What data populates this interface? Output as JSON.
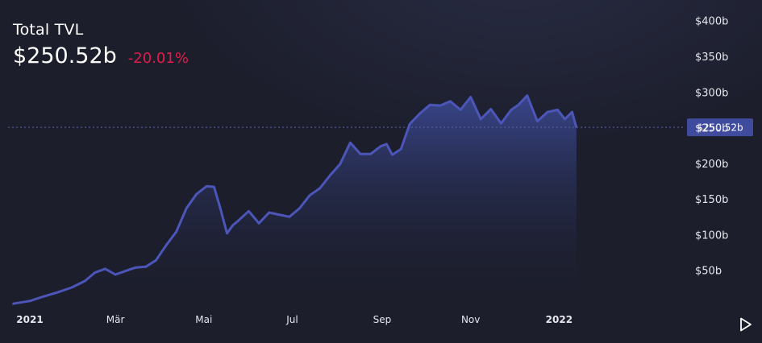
{
  "header": {
    "title": "Total TVL",
    "value": "$250.52b",
    "change": "-20.01%",
    "change_color": "#e11d48"
  },
  "colors": {
    "background": "#1c1e2c",
    "line": "#4b56b8",
    "area_top": "#3a4790",
    "area_bottom": "#1c1e2c",
    "badge": "#3f4b9c",
    "dashed_line": "#5a62b0"
  },
  "controls": {
    "play_icon": "play-icon"
  },
  "chart_data": {
    "type": "area",
    "y_ticks": [
      "$50b",
      "$100b",
      "$150b",
      "$200b",
      "$250b",
      "$300b",
      "$350b",
      "$400b"
    ],
    "y_tick_values": [
      50,
      100,
      150,
      200,
      250,
      300,
      350,
      400
    ],
    "x_ticks": [
      {
        "label": "2021",
        "date": "2021-01-01",
        "bold": true
      },
      {
        "label": "Mär",
        "date": "2021-03-01",
        "bold": false
      },
      {
        "label": "Mai",
        "date": "2021-05-01",
        "bold": false
      },
      {
        "label": "Jul",
        "date": "2021-07-01",
        "bold": false
      },
      {
        "label": "Sep",
        "date": "2021-09-01",
        "bold": false
      },
      {
        "label": "Nov",
        "date": "2021-11-01",
        "bold": false
      },
      {
        "label": "2022",
        "date": "2022-01-01",
        "bold": true
      }
    ],
    "ylim": [
      0,
      420
    ],
    "xlim": [
      "2020-12-17",
      "2022-03-28"
    ],
    "current_value": 250.52,
    "current_label": "$250.52b",
    "grid": false,
    "series": [
      {
        "x": [
          "2020-12-20",
          "2021-01-01",
          "2021-01-10",
          "2021-01-20",
          "2021-01-30",
          "2021-02-08",
          "2021-02-15",
          "2021-02-22",
          "2021-03-01",
          "2021-03-08",
          "2021-03-15",
          "2021-03-22",
          "2021-03-29",
          "2021-04-05",
          "2021-04-12",
          "2021-04-19",
          "2021-04-26",
          "2021-05-03",
          "2021-05-08",
          "2021-05-12",
          "2021-05-17",
          "2021-05-21",
          "2021-05-25",
          "2021-06-01",
          "2021-06-08",
          "2021-06-15",
          "2021-06-22",
          "2021-06-29",
          "2021-07-06",
          "2021-07-13",
          "2021-07-20",
          "2021-07-27",
          "2021-08-03",
          "2021-08-10",
          "2021-08-17",
          "2021-08-24",
          "2021-08-31",
          "2021-09-04",
          "2021-09-08",
          "2021-09-14",
          "2021-09-20",
          "2021-09-27",
          "2021-10-04",
          "2021-10-11",
          "2021-10-18",
          "2021-10-25",
          "2021-11-01",
          "2021-11-08",
          "2021-11-15",
          "2021-11-22",
          "2021-11-29",
          "2021-12-04",
          "2021-12-10",
          "2021-12-17",
          "2021-12-24",
          "2021-12-31",
          "2022-01-05",
          "2022-01-10",
          "2022-01-13"
        ],
        "values": [
          3,
          7,
          13,
          19,
          26,
          35,
          47,
          52,
          44,
          49,
          54,
          55,
          64,
          85,
          104,
          137,
          157,
          168,
          167,
          140,
          102,
          113,
          120,
          133,
          116,
          131,
          128,
          125,
          137,
          155,
          165,
          183,
          199,
          229,
          213,
          213,
          224,
          227,
          212,
          220,
          255,
          270,
          282,
          281,
          287,
          275,
          293,
          262,
          276,
          256,
          275,
          282,
          295,
          259,
          272,
          275,
          262,
          272,
          250
        ]
      }
    ]
  }
}
